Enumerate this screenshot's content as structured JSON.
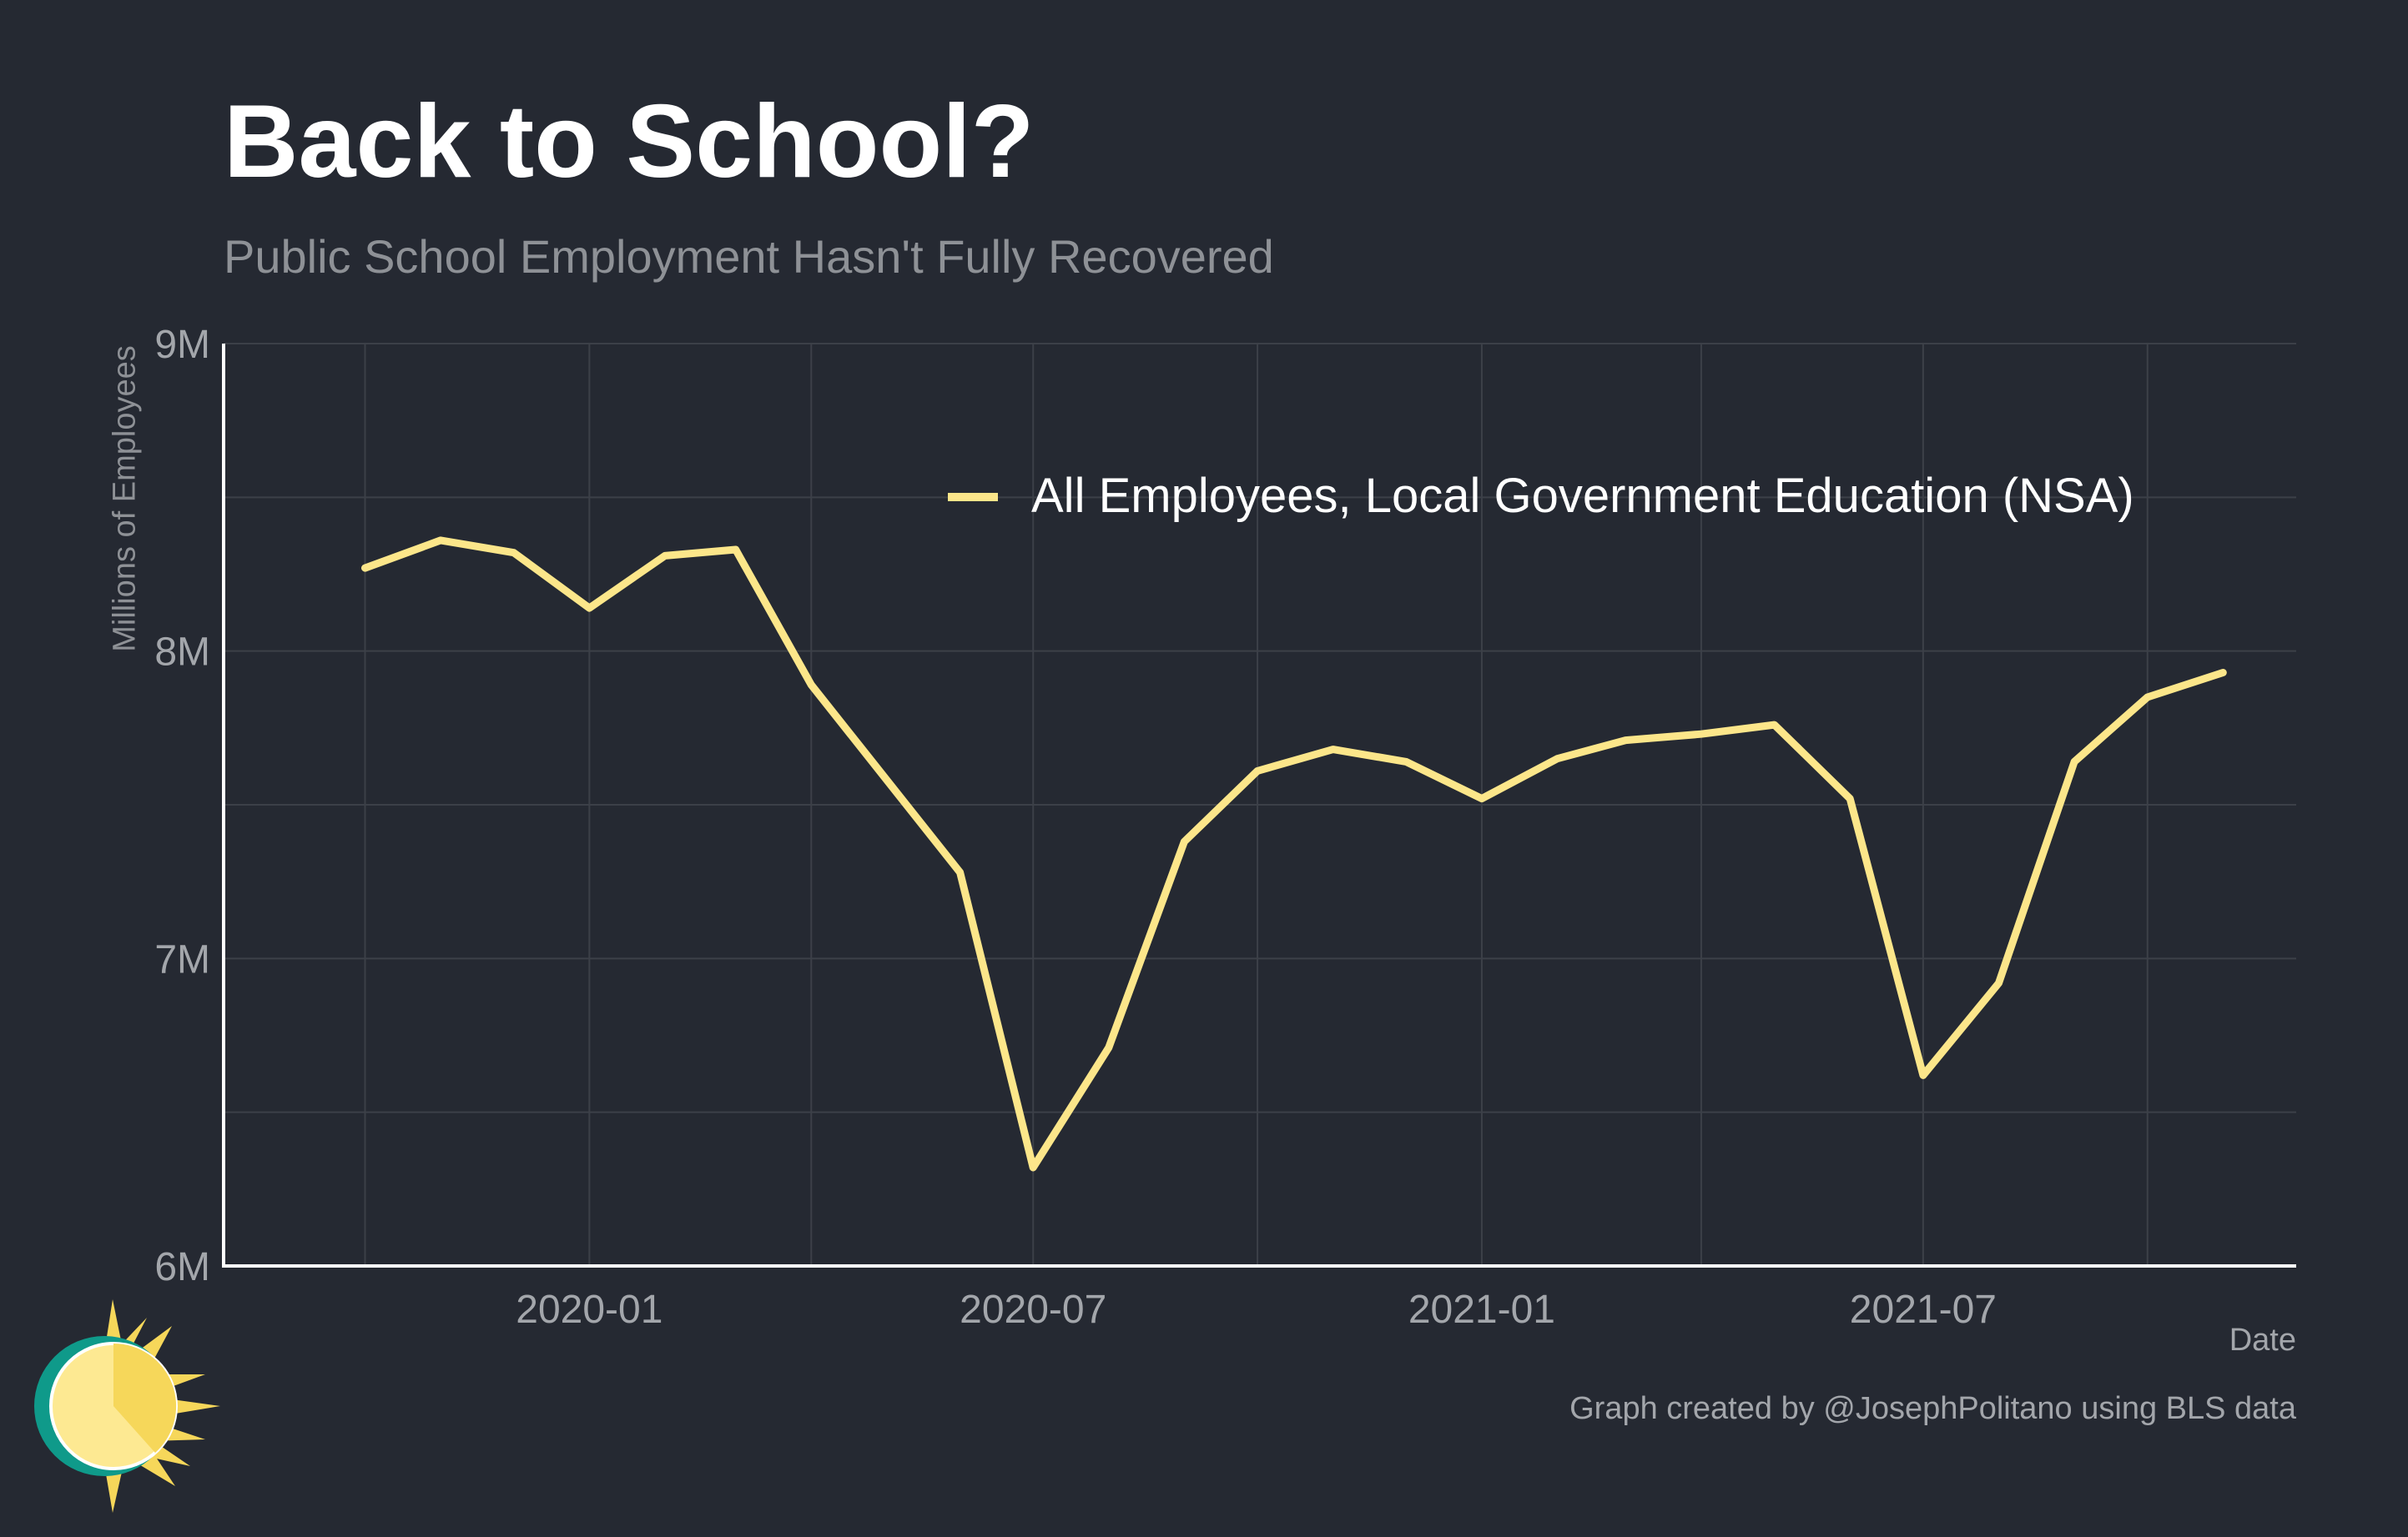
{
  "header": {
    "title": "Back to School?",
    "subtitle": "Public School Employment Hasn't Fully Recovered"
  },
  "footer": {
    "caption": "Graph created by @JosephPolitano using BLS data"
  },
  "chart_data": {
    "type": "line",
    "title": "Back to School?",
    "subtitle": "Public School Employment Hasn't Fully Recovered",
    "xlabel": "Date",
    "ylabel": "Millions of Employees",
    "ylim": [
      6000000,
      9000000
    ],
    "y_ticks": [
      6000000,
      7000000,
      8000000,
      9000000
    ],
    "y_tick_labels": [
      "6M",
      "7M",
      "8M",
      "9M"
    ],
    "x_ticks": [
      "2020-01",
      "2020-07",
      "2021-01",
      "2021-07"
    ],
    "x_tick_labels": [
      "2020-01",
      "2020-07",
      "2021-01",
      "2021-07"
    ],
    "xlim": [
      "2019-08-04",
      "2021-12-01"
    ],
    "grid": true,
    "legend_position": "top-right",
    "colors": {
      "background": "#252932",
      "line": "#fce68a",
      "grid": "#3c4048",
      "axis": "#ffffff",
      "tick_text": "#a3a6ab"
    },
    "series": [
      {
        "name": "All Employees, Local Government Education (NSA)",
        "x": [
          "2019-10",
          "2019-11",
          "2019-12",
          "2020-01",
          "2020-02",
          "2020-03",
          "2020-04",
          "2020-05",
          "2020-06",
          "2020-07",
          "2020-08",
          "2020-09",
          "2020-10",
          "2020-11",
          "2020-12",
          "2021-01",
          "2021-02",
          "2021-03",
          "2021-04",
          "2021-05",
          "2021-06",
          "2021-07",
          "2021-08",
          "2021-09",
          "2021-10",
          "2021-11"
        ],
        "values": [
          8270000,
          8360000,
          8320000,
          8140000,
          8310000,
          8330000,
          7890000,
          7590000,
          7280000,
          6320000,
          6710000,
          7380000,
          7610000,
          7680000,
          7640000,
          7520000,
          7650000,
          7710000,
          7730000,
          7760000,
          7520000,
          6620000,
          6920000,
          7640000,
          7850000,
          7930000
        ]
      }
    ]
  }
}
